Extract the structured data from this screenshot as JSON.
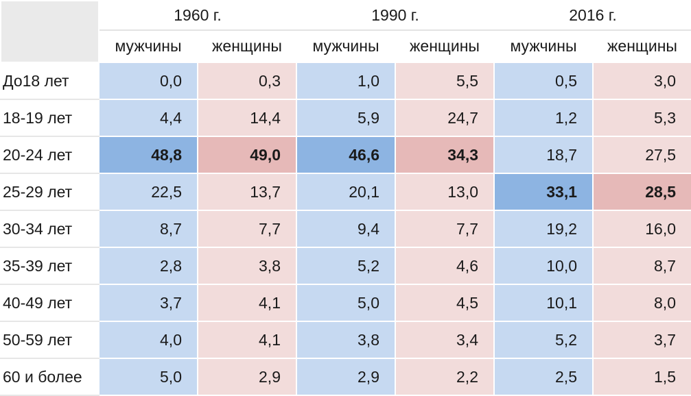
{
  "header": {
    "years": [
      "1960 г.",
      "1990 г.",
      "2016 г."
    ],
    "sexes": [
      "мужчины",
      "женщины"
    ]
  },
  "colors": {
    "men": "#c6d9f1",
    "women": "#f2dcdb",
    "men_highlight": "#8db4e2",
    "women_highlight": "#e6b9b8",
    "corner": "#eaeaea"
  },
  "rows": [
    {
      "label": "До18 лет",
      "values": [
        "0,0",
        "0,3",
        "1,0",
        "5,5",
        "0,5",
        "3,0"
      ],
      "highlight": [
        false,
        false,
        false,
        false,
        false,
        false
      ]
    },
    {
      "label": "18-19 лет",
      "values": [
        "4,4",
        "14,4",
        "5,9",
        "24,7",
        "1,2",
        "5,3"
      ],
      "highlight": [
        false,
        false,
        false,
        false,
        false,
        false
      ]
    },
    {
      "label": "20-24 лет",
      "values": [
        "48,8",
        "49,0",
        "46,6",
        "34,3",
        "18,7",
        "27,5"
      ],
      "highlight": [
        true,
        true,
        true,
        true,
        false,
        false
      ]
    },
    {
      "label": "25-29 лет",
      "values": [
        "22,5",
        "13,7",
        "20,1",
        "13,0",
        "33,1",
        "28,5"
      ],
      "highlight": [
        false,
        false,
        false,
        false,
        true,
        true
      ]
    },
    {
      "label": "30-34 лет",
      "values": [
        "8,7",
        "7,7",
        "9,4",
        "7,7",
        "19,2",
        "16,0"
      ],
      "highlight": [
        false,
        false,
        false,
        false,
        false,
        false
      ]
    },
    {
      "label": "35-39 лет",
      "values": [
        "2,8",
        "3,8",
        "5,2",
        "4,6",
        "10,0",
        "8,7"
      ],
      "highlight": [
        false,
        false,
        false,
        false,
        false,
        false
      ]
    },
    {
      "label": "40-49 лет",
      "values": [
        "3,7",
        "4,1",
        "5,0",
        "4,5",
        "10,1",
        "8,0"
      ],
      "highlight": [
        false,
        false,
        false,
        false,
        false,
        false
      ]
    },
    {
      "label": "50-59 лет",
      "values": [
        "4,0",
        "4,1",
        "3,8",
        "3,4",
        "5,2",
        "3,7"
      ],
      "highlight": [
        false,
        false,
        false,
        false,
        false,
        false
      ]
    },
    {
      "label": "60 и более",
      "values": [
        "5,0",
        "2,9",
        "2,9",
        "2,2",
        "2,5",
        "1,5"
      ],
      "highlight": [
        false,
        false,
        false,
        false,
        false,
        false
      ]
    }
  ]
}
